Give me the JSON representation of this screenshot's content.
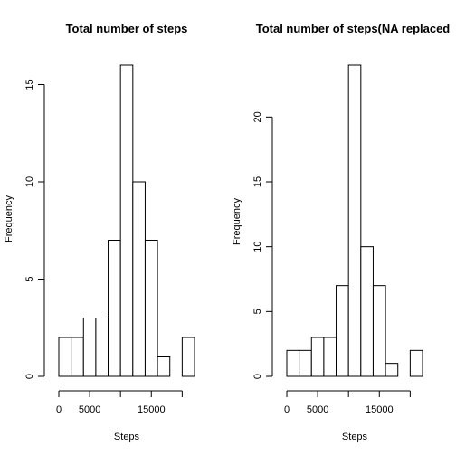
{
  "chart_data": [
    {
      "type": "bar",
      "title": "Total number of steps",
      "xlabel": "Steps",
      "ylabel": "Frequency",
      "bin_width": 2000,
      "x_start": 0,
      "values": [
        2,
        2,
        3,
        3,
        7,
        16,
        10,
        7,
        1,
        0,
        2
      ],
      "xlim": [
        0,
        22000
      ],
      "ylim": [
        0,
        16
      ],
      "x_ticks": [
        0,
        5000,
        10000,
        15000,
        20000
      ],
      "x_tick_labels": [
        "0",
        "5000",
        "",
        "15000",
        ""
      ],
      "y_ticks": [
        0,
        5,
        10,
        15
      ],
      "y_tick_labels": [
        "0",
        "5",
        "10",
        "15"
      ]
    },
    {
      "type": "bar",
      "title": "Total number of steps(NA replaced",
      "xlabel": "Steps",
      "ylabel": "Frequency",
      "bin_width": 2000,
      "x_start": 0,
      "values": [
        2,
        2,
        3,
        3,
        7,
        24,
        10,
        7,
        1,
        0,
        2
      ],
      "xlim": [
        0,
        22000
      ],
      "ylim": [
        0,
        24
      ],
      "x_ticks": [
        0,
        5000,
        10000,
        15000,
        20000
      ],
      "x_tick_labels": [
        "0",
        "5000",
        "",
        "15000",
        ""
      ],
      "y_ticks": [
        0,
        5,
        10,
        15,
        20
      ],
      "y_tick_labels": [
        "0",
        "5",
        "10",
        "15",
        "20"
      ]
    }
  ]
}
